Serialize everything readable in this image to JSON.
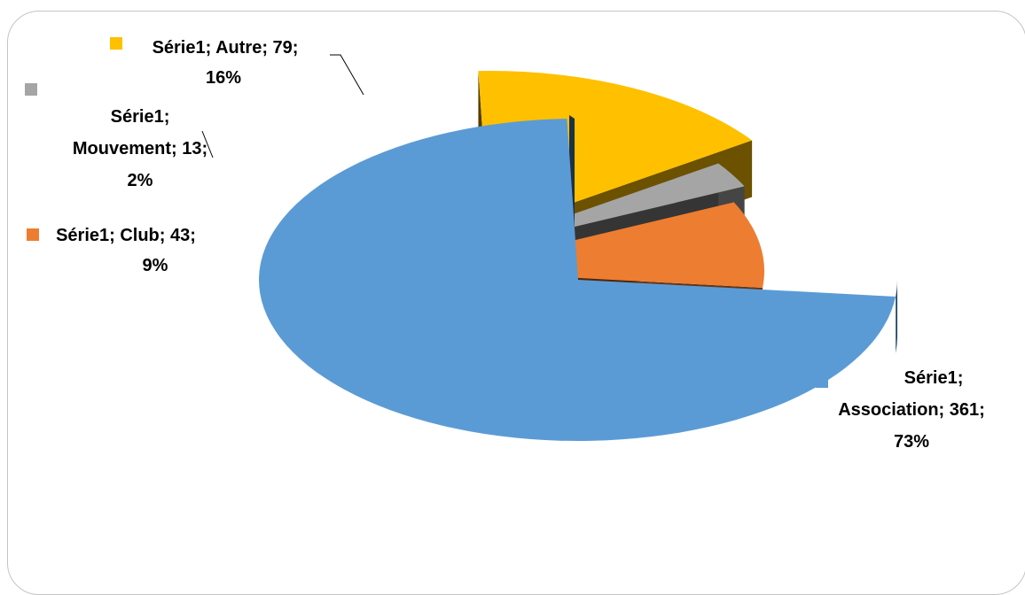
{
  "chart_data": {
    "type": "pie",
    "title": "",
    "series_name": "Série1",
    "slices": [
      {
        "category": "Association",
        "value": 361,
        "percent": "73%",
        "label_lines": [
          "Série1;",
          "Association; 361;",
          "73%"
        ],
        "color": "#5b9bd5"
      },
      {
        "category": "Club",
        "value": 43,
        "percent": "9%",
        "label_lines": [
          "Série1; Club; 43;",
          "9%"
        ],
        "color": "#ed7d31"
      },
      {
        "category": "Mouvement",
        "value": 13,
        "percent": "2%",
        "label_lines": [
          "Série1;",
          "Mouvement; 13;",
          "2%"
        ],
        "color": "#a5a5a5"
      },
      {
        "category": "Autre",
        "value": 79,
        "percent": "16%",
        "label_lines": [
          "Série1; Autre; 79;",
          "16%"
        ],
        "color": "#ffc000"
      }
    ]
  }
}
